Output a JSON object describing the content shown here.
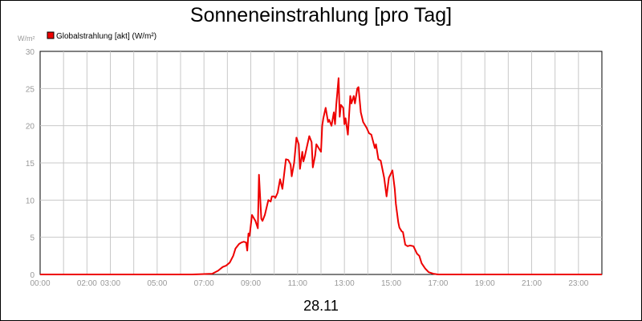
{
  "chart_data": {
    "type": "line",
    "title": "Sonneneinstrahlung [pro Tag]",
    "ylabel": "W/m²",
    "xlabel": "28.11",
    "ylim": [
      0,
      30
    ],
    "xlim": [
      0,
      24
    ],
    "yticks": [
      0,
      5,
      10,
      15,
      20,
      25,
      30
    ],
    "xticks": [
      {
        "value": 0,
        "label": "00:00"
      },
      {
        "value": 2,
        "label": "02:00"
      },
      {
        "value": 3,
        "label": "03:00"
      },
      {
        "value": 5,
        "label": "05:00"
      },
      {
        "value": 7,
        "label": "07:00"
      },
      {
        "value": 9,
        "label": "09:00"
      },
      {
        "value": 11,
        "label": "11:00"
      },
      {
        "value": 13,
        "label": "13:00"
      },
      {
        "value": 15,
        "label": "15:00"
      },
      {
        "value": 17,
        "label": "17:00"
      },
      {
        "value": 19,
        "label": "19:00"
      },
      {
        "value": 21,
        "label": "21:00"
      },
      {
        "value": 23,
        "label": "23:00"
      }
    ],
    "grid": true,
    "legend_position": "top-left",
    "series": [
      {
        "name": "Globalstrahlung [akt] (W/m²)",
        "color": "#ee0000",
        "x": [
          0,
          6.5,
          7.35,
          7.6,
          7.8,
          7.95,
          8.1,
          8.25,
          8.35,
          8.5,
          8.6,
          8.7,
          8.8,
          8.85,
          8.9,
          8.95,
          9.05,
          9.2,
          9.3,
          9.35,
          9.45,
          9.5,
          9.6,
          9.75,
          9.85,
          9.9,
          10.0,
          10.05,
          10.15,
          10.25,
          10.35,
          10.5,
          10.6,
          10.7,
          10.75,
          10.85,
          10.95,
          11.05,
          11.1,
          11.2,
          11.25,
          11.3,
          11.4,
          11.5,
          11.6,
          11.65,
          11.75,
          11.8,
          11.9,
          12.0,
          12.05,
          12.1,
          12.2,
          12.3,
          12.35,
          12.45,
          12.55,
          12.6,
          12.65,
          12.75,
          12.8,
          12.85,
          12.95,
          13.0,
          13.05,
          13.15,
          13.25,
          13.3,
          13.4,
          13.45,
          13.55,
          13.6,
          13.7,
          13.8,
          13.95,
          14.05,
          14.15,
          14.3,
          14.35,
          14.45,
          14.55,
          14.7,
          14.8,
          14.9,
          15.05,
          15.15,
          15.2,
          15.3,
          15.35,
          15.45,
          15.5,
          15.6,
          15.7,
          15.8,
          15.95,
          16.1,
          16.2,
          16.3,
          16.45,
          16.6,
          16.8,
          17.0,
          24.0
        ],
        "values": [
          0,
          0,
          0.1,
          0.5,
          1.0,
          1.2,
          1.6,
          2.5,
          3.5,
          4.1,
          4.3,
          4.4,
          4.3,
          3.2,
          5.5,
          5.2,
          8.0,
          7.2,
          6.2,
          13.4,
          7.5,
          7.2,
          8.0,
          10.0,
          9.8,
          10.5,
          10.5,
          10.3,
          11.0,
          12.8,
          11.5,
          15.5,
          15.4,
          14.8,
          13.2,
          15.0,
          18.4,
          17.5,
          14.2,
          16.5,
          15.2,
          15.8,
          17.2,
          18.6,
          17.8,
          14.4,
          16.0,
          17.5,
          17.0,
          16.5,
          20.0,
          21.0,
          22.4,
          20.5,
          20.8,
          20.0,
          21.8,
          20.2,
          22.8,
          26.4,
          21.2,
          22.8,
          22.4,
          20.2,
          21.0,
          18.8,
          24.0,
          23.0,
          24.0,
          23.0,
          25.0,
          25.2,
          21.8,
          20.5,
          19.7,
          19.0,
          18.8,
          17.0,
          17.5,
          15.5,
          15.3,
          13.0,
          10.5,
          13.0,
          14.0,
          11.5,
          9.5,
          7.0,
          6.3,
          5.8,
          5.7,
          4.0,
          3.8,
          3.9,
          3.8,
          2.8,
          2.5,
          1.5,
          0.8,
          0.3,
          0.1,
          0,
          0
        ]
      }
    ]
  }
}
